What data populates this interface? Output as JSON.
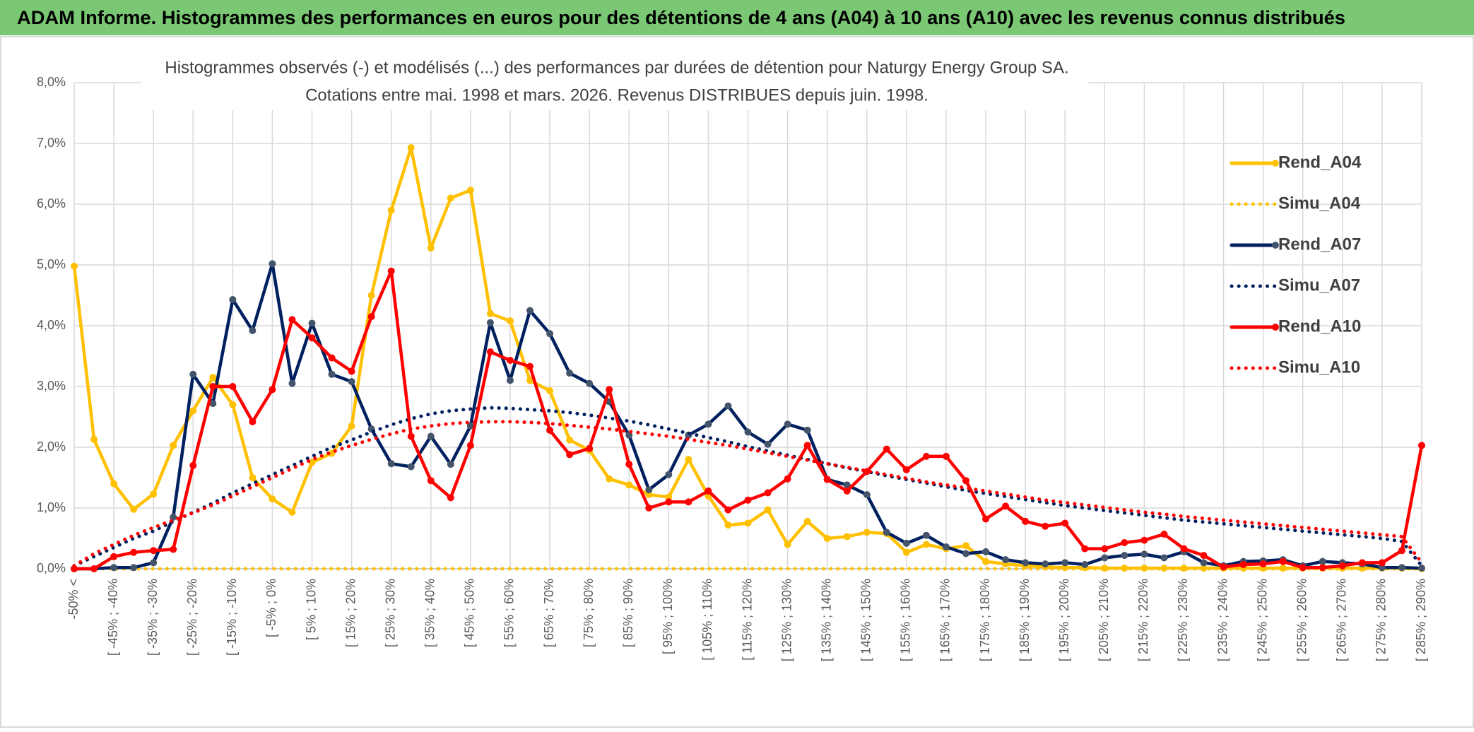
{
  "header": {
    "title": "ADAM Informe. Histogrammes des performances en euros pour des détentions de 4 ans (A04) à 10 ans (A10) avec les revenus connus distribués"
  },
  "chart_data": {
    "type": "line",
    "title": "Histogrammes observés (-) et modélisés (...) des performances par durées de détention pour Naturgy Energy Group SA.",
    "subtitle": "Cotations entre mai. 1998 et mars. 2026. Revenus DISTRIBUES depuis juin. 1998.",
    "categories": [
      "-50% <",
      null,
      "[ -45% ; -40%",
      null,
      "[ -35% ; -30%",
      null,
      "[ -25% ; -20%",
      null,
      "[ -15% ; -10%",
      null,
      "[ -5% ; 0%",
      null,
      "[ 5% ; 10%",
      null,
      "[ 15% ; 20%",
      null,
      "[ 25% ; 30%",
      null,
      "[ 35% ; 40%",
      null,
      "[ 45% ; 50%",
      null,
      "[ 55% ; 60%",
      null,
      "[ 65% ; 70%",
      null,
      "[ 75% ; 80%",
      null,
      "[ 85% ; 90%",
      null,
      "[ 95% ; 100%",
      null,
      "[ 105% ; 110%",
      null,
      "[ 115% ; 120%",
      null,
      "[ 125% ; 130%",
      null,
      "[ 135% ; 140%",
      null,
      "[ 145% ; 150%",
      null,
      "[ 155% ; 160%",
      null,
      "[ 165% ; 170%",
      null,
      "[ 175% ; 180%",
      null,
      "[ 185% ; 190%",
      null,
      "[ 195% ; 200%",
      null,
      "[ 205% ; 210%",
      null,
      "[ 215% ; 220%",
      null,
      "[ 225% ; 230%",
      null,
      "[ 235% ; 240%",
      null,
      "[ 245% ; 250%",
      null,
      "[ 255% ; 260%",
      null,
      "[ 265% ; 270%",
      null,
      "[ 275% ; 280%",
      null,
      "[ 285% ; 290%"
    ],
    "ylim": [
      0,
      8
    ],
    "yticks": [
      {
        "value": 0,
        "label": "0,0%"
      },
      {
        "value": 1,
        "label": "1,0%"
      },
      {
        "value": 2,
        "label": "2,0%"
      },
      {
        "value": 3,
        "label": "3,0%"
      },
      {
        "value": 4,
        "label": "4,0%"
      },
      {
        "value": 5,
        "label": "5,0%"
      },
      {
        "value": 6,
        "label": "6,0%"
      },
      {
        "value": 7,
        "label": "7,0%"
      },
      {
        "value": 8,
        "label": "8,0%"
      }
    ],
    "grid": true,
    "legend_position": "right",
    "series": [
      {
        "name": "Rend_A04",
        "color": "#ffc000",
        "marker_color": "#ffc000",
        "line_style": "solid",
        "markers": true,
        "values": [
          4.98,
          2.13,
          1.4,
          0.98,
          1.23,
          2.03,
          2.6,
          3.15,
          2.7,
          1.5,
          1.15,
          0.93,
          1.75,
          1.9,
          2.35,
          4.5,
          5.9,
          6.93,
          5.28,
          6.1,
          6.23,
          4.2,
          4.08,
          3.1,
          2.93,
          2.12,
          1.95,
          1.48,
          1.38,
          1.22,
          1.18,
          1.8,
          1.2,
          0.72,
          0.75,
          0.97,
          0.4,
          0.78,
          0.5,
          0.53,
          0.6,
          0.58,
          0.27,
          0.4,
          0.33,
          0.38,
          0.12,
          0.08,
          0.05,
          0.03,
          0.02,
          0.02,
          0.01,
          0.01,
          0.01,
          0.01,
          0.01,
          0.01,
          0.01,
          0.01,
          0.01,
          0.01,
          0.01,
          0.01,
          0.01,
          0.01,
          0.01,
          0.01,
          0
        ]
      },
      {
        "name": "Simu_A04",
        "color": "#ffc000",
        "line_style": "dotted",
        "markers": false,
        "values": [
          0,
          0,
          0,
          0,
          0,
          0,
          0,
          0,
          0,
          0,
          0,
          0,
          0,
          0,
          0,
          0,
          0,
          0,
          0,
          0,
          0,
          0,
          0,
          0,
          0,
          0,
          0,
          0,
          0,
          0,
          0,
          0,
          0,
          0,
          0,
          0,
          0,
          0,
          0,
          0,
          0,
          0,
          0,
          0,
          0,
          0,
          0,
          0,
          0,
          0,
          0,
          0,
          0,
          0,
          0,
          0,
          0,
          0,
          0,
          0,
          0,
          0,
          0,
          0,
          0,
          0,
          0,
          0,
          0
        ]
      },
      {
        "name": "Rend_A07",
        "color": "#002060",
        "marker_color": "#44546a",
        "line_style": "solid",
        "markers": true,
        "values": [
          0,
          0,
          0.02,
          0.02,
          0.1,
          0.85,
          3.2,
          2.72,
          4.43,
          3.92,
          5.02,
          3.05,
          4.04,
          3.2,
          3.08,
          2.3,
          1.73,
          1.68,
          2.18,
          1.72,
          2.35,
          4.05,
          3.1,
          4.25,
          3.87,
          3.22,
          3.05,
          2.75,
          2.2,
          1.3,
          1.55,
          2.2,
          2.38,
          2.68,
          2.25,
          2.05,
          2.38,
          2.28,
          1.47,
          1.38,
          1.22,
          0.6,
          0.42,
          0.55,
          0.36,
          0.25,
          0.28,
          0.15,
          0.1,
          0.08,
          0.1,
          0.07,
          0.18,
          0.22,
          0.24,
          0.18,
          0.28,
          0.1,
          0.05,
          0.12,
          0.13,
          0.15,
          0.05,
          0.12,
          0.1,
          0.08,
          0.02,
          0.02,
          0.01
        ]
      },
      {
        "name": "Simu_A07",
        "color": "#002060",
        "line_style": "dotted",
        "markers": false,
        "values": [
          0.05,
          0.2,
          0.35,
          0.5,
          0.62,
          0.78,
          0.93,
          1.08,
          1.25,
          1.4,
          1.55,
          1.7,
          1.85,
          2.0,
          2.12,
          2.25,
          2.37,
          2.47,
          2.55,
          2.6,
          2.63,
          2.65,
          2.64,
          2.62,
          2.6,
          2.57,
          2.53,
          2.48,
          2.43,
          2.37,
          2.3,
          2.23,
          2.16,
          2.09,
          2.01,
          1.94,
          1.87,
          1.8,
          1.73,
          1.66,
          1.6,
          1.53,
          1.47,
          1.41,
          1.35,
          1.29,
          1.24,
          1.19,
          1.14,
          1.09,
          1.04,
          1.0,
          0.96,
          0.92,
          0.88,
          0.84,
          0.8,
          0.77,
          0.74,
          0.71,
          0.68,
          0.65,
          0.62,
          0.59,
          0.56,
          0.53,
          0.5,
          0.45,
          0.05
        ]
      },
      {
        "name": "Rend_A10",
        "color": "#ff0000",
        "marker_color": "#ff0000",
        "line_style": "solid",
        "markers": true,
        "values": [
          0,
          0,
          0.2,
          0.27,
          0.3,
          0.32,
          1.7,
          3.0,
          3.0,
          2.42,
          2.95,
          4.1,
          3.8,
          3.47,
          3.25,
          4.15,
          4.9,
          2.18,
          1.45,
          1.17,
          2.03,
          3.57,
          3.43,
          3.33,
          2.28,
          1.88,
          1.98,
          2.95,
          1.72,
          1.0,
          1.1,
          1.1,
          1.28,
          0.97,
          1.13,
          1.25,
          1.48,
          2.03,
          1.47,
          1.28,
          1.6,
          1.97,
          1.63,
          1.85,
          1.85,
          1.45,
          0.82,
          1.03,
          0.78,
          0.7,
          0.75,
          0.33,
          0.33,
          0.43,
          0.47,
          0.57,
          0.33,
          0.22,
          0.03,
          0.07,
          0.08,
          0.12,
          0.02,
          0.02,
          0.05,
          0.1,
          0.1,
          0.3,
          2.03
        ]
      },
      {
        "name": "Simu_A10",
        "color": "#ff0000",
        "line_style": "dotted",
        "markers": false,
        "values": [
          0.05,
          0.25,
          0.4,
          0.55,
          0.68,
          0.8,
          0.92,
          1.05,
          1.2,
          1.35,
          1.5,
          1.65,
          1.8,
          1.92,
          2.03,
          2.13,
          2.22,
          2.3,
          2.35,
          2.39,
          2.41,
          2.42,
          2.42,
          2.41,
          2.39,
          2.36,
          2.33,
          2.3,
          2.26,
          2.22,
          2.18,
          2.13,
          2.08,
          2.03,
          1.97,
          1.91,
          1.85,
          1.79,
          1.73,
          1.67,
          1.61,
          1.55,
          1.49,
          1.43,
          1.38,
          1.33,
          1.28,
          1.23,
          1.18,
          1.13,
          1.09,
          1.05,
          1.01,
          0.97,
          0.93,
          0.9,
          0.86,
          0.83,
          0.8,
          0.77,
          0.74,
          0.71,
          0.68,
          0.65,
          0.62,
          0.59,
          0.56,
          0.53,
          0.1
        ]
      }
    ]
  }
}
